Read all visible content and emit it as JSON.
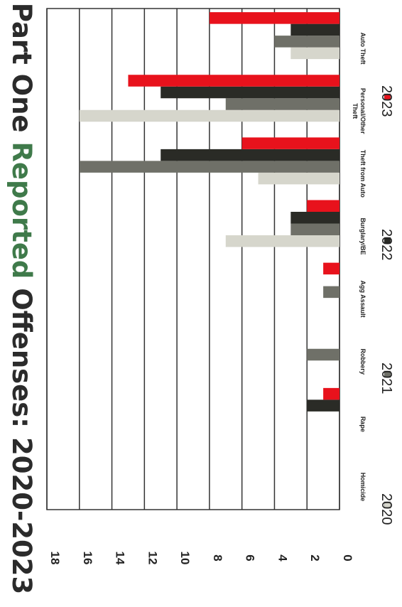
{
  "chart_data": {
    "type": "bar",
    "title": "Part One Reported Offenses: 2020-2023",
    "title_parts": [
      "Part One ",
      "Reported",
      " Offenses: 2020-2023"
    ],
    "categories": [
      "Homicide",
      "Rape",
      "Robbery",
      "Agg Assault",
      "Burglary/BE",
      "Theft from Auto",
      "Personal/Other Theft",
      "Auto Theft"
    ],
    "series": [
      {
        "name": "2020",
        "values": [
          0,
          0,
          0,
          0,
          7,
          5,
          16,
          3
        ]
      },
      {
        "name": "2021",
        "values": [
          0,
          0,
          2,
          1,
          3,
          16,
          7,
          4
        ]
      },
      {
        "name": "2022",
        "values": [
          0,
          2,
          0,
          0,
          3,
          11,
          11,
          3
        ]
      },
      {
        "name": "2023",
        "values": [
          0,
          1,
          0,
          1,
          2,
          6,
          13,
          8
        ]
      }
    ],
    "ylim": [
      0,
      18
    ],
    "yticks": [
      0,
      2,
      4,
      6,
      8,
      10,
      12,
      14,
      16,
      18
    ],
    "xlabel": "",
    "ylabel": "",
    "grid": true,
    "legend_position": "bottom",
    "colors": {
      "2020": "#d6d6cc",
      "2021": "#6f7068",
      "2022": "#2a2b26",
      "2023": "#e8121c",
      "title_dark": "#2b2b2b",
      "title_green": "#3f7a4a",
      "grid": "#333333"
    }
  }
}
